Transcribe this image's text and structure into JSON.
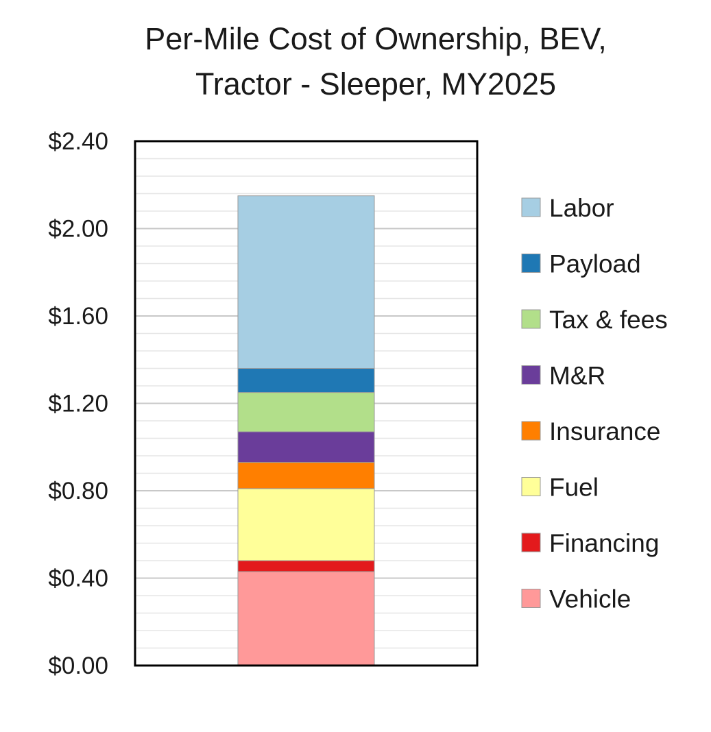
{
  "chart_data": {
    "type": "bar",
    "stacked": true,
    "title": "Per-Mile Cost of Ownership, BEV, Tractor - Sleeper, MY2025",
    "title_lines": [
      "Per-Mile Cost of Ownership, BEV,",
      "Tractor - Sleeper, MY2025"
    ],
    "xlabel": "",
    "ylabel": "",
    "ylim": [
      0,
      2.4
    ],
    "yticks": [
      0,
      0.4,
      0.8,
      1.2,
      1.6,
      2.0,
      2.4
    ],
    "ytick_labels": [
      "$0.00",
      "$0.40",
      "$0.80",
      "$1.20",
      "$1.60",
      "$2.00",
      "$2.40"
    ],
    "minor_grid_step": 0.08,
    "grid": true,
    "legend_position": "right",
    "series": [
      {
        "name": "Vehicle",
        "value": 0.43,
        "color": "#ff9999"
      },
      {
        "name": "Financing",
        "value": 0.05,
        "color": "#e31a1c"
      },
      {
        "name": "Fuel",
        "value": 0.33,
        "color": "#ffff99"
      },
      {
        "name": "Insurance",
        "value": 0.12,
        "color": "#ff7f00"
      },
      {
        "name": "M&R",
        "value": 0.14,
        "color": "#6a3d9a"
      },
      {
        "name": "Tax & fees",
        "value": 0.18,
        "color": "#b2df8a"
      },
      {
        "name": "Payload",
        "value": 0.11,
        "color": "#1f78b4"
      },
      {
        "name": "Labor",
        "value": 0.79,
        "color": "#a6cee3"
      }
    ]
  }
}
